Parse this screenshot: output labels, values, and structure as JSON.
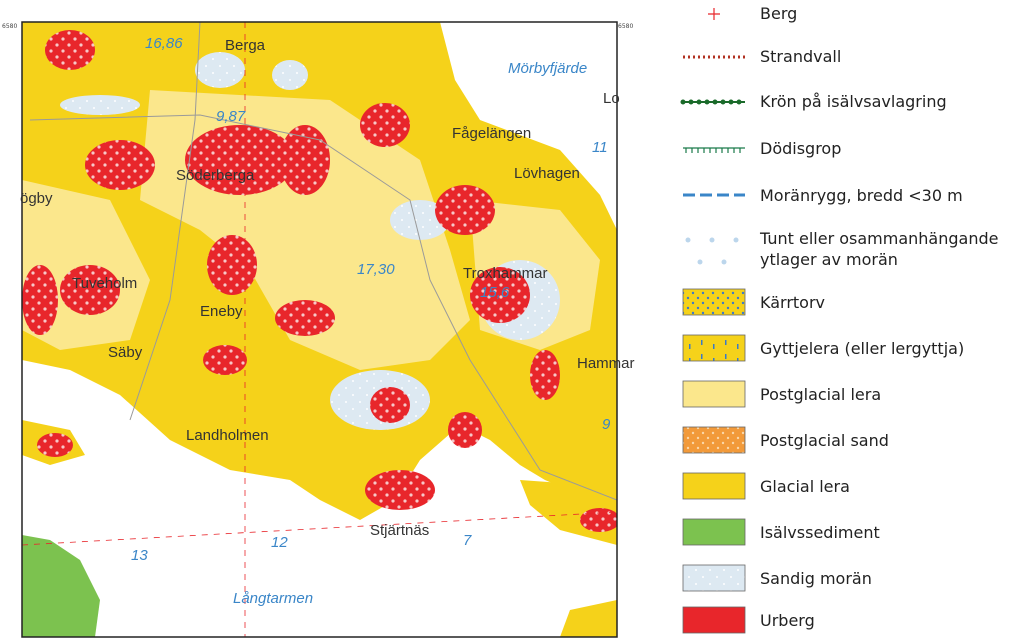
{
  "map": {
    "coordinates": [
      "6580",
      "6580"
    ],
    "places": [
      "Berga",
      "Mörbyfjärde",
      "Lo",
      "Fågelängen",
      "Lövhagen",
      "Söderberga",
      "ögby",
      "Troxhammar",
      "Tuveholm",
      "Eneby",
      "Säby",
      "Hammar",
      "Landholmen",
      "Stjärtnäs",
      "Långtarmen"
    ],
    "numbers": [
      "16,86",
      "9,87",
      "17,30",
      "15,6",
      "11",
      "9",
      "13",
      "12",
      "7"
    ]
  },
  "legend": {
    "items": [
      "Berg",
      "Strandvall",
      "Krön på isälvsavlagring",
      "Dödisgrop",
      "Moränrygg, bredd <30 m",
      "Tunt eller osammanhängande",
      "ytlager av morän",
      "Kärrtorv",
      "Gyttjelera (eller lergyttja)",
      "Postglacial lera",
      "Postglacial sand",
      "Glacial lera",
      "Isälvssediment",
      "Sandig morän",
      "Urberg"
    ]
  }
}
